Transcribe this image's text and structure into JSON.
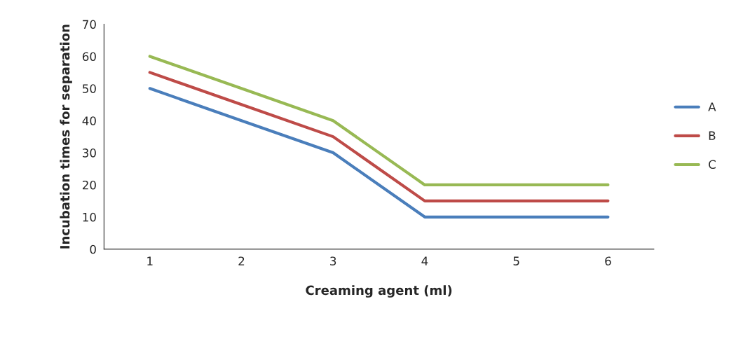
{
  "chart_data": {
    "type": "line",
    "xlabel": "Creaming agent (ml)",
    "ylabel": "Incubation times for separation",
    "categories": [
      "1",
      "2",
      "3",
      "4",
      "5",
      "6"
    ],
    "series": [
      {
        "name": "A",
        "color": "#4a7ebb",
        "values": [
          50,
          40,
          30,
          10,
          10,
          10
        ]
      },
      {
        "name": "B",
        "color": "#be4b48",
        "values": [
          55,
          45,
          35,
          15,
          15,
          15
        ]
      },
      {
        "name": "C",
        "color": "#98b954",
        "values": [
          60,
          50,
          40,
          20,
          20,
          20
        ]
      }
    ],
    "ylim": [
      0,
      70
    ],
    "yticks": [
      0,
      10,
      20,
      30,
      40,
      50,
      60,
      70
    ],
    "grid": false,
    "legend": "right",
    "marker": "none",
    "line_style": "solid"
  }
}
